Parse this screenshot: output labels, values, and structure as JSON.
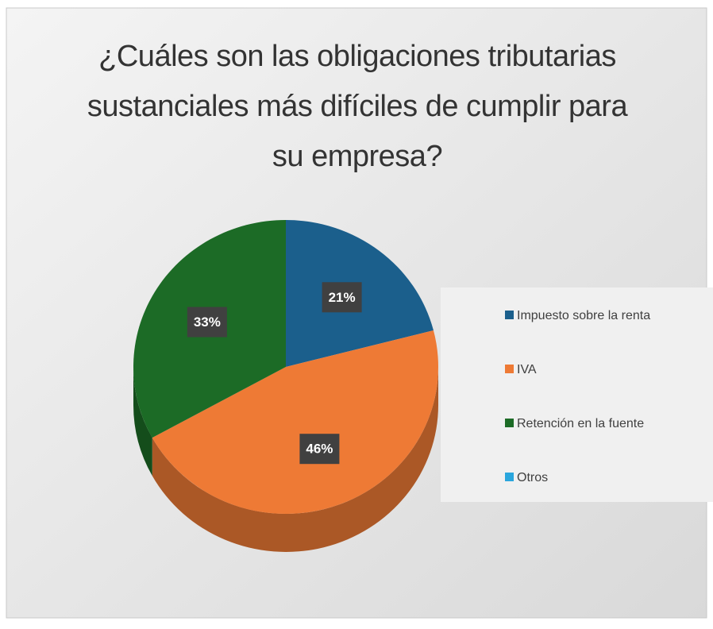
{
  "chart_data": {
    "type": "pie",
    "title": "¿Cuáles son las obligaciones tributarias sustanciales más difíciles de cumplir para su empresa?",
    "categories": [
      "Impuesto sobre la renta",
      "IVA",
      "Retención en la fuente",
      "Otros"
    ],
    "values": [
      21,
      46,
      33,
      0
    ],
    "value_labels": [
      "21%",
      "46%",
      "33%",
      null
    ],
    "colors": [
      "#1b5f8c",
      "#ee7a35",
      "#1c6b26",
      "#2aa6dd"
    ],
    "legend": "right"
  }
}
